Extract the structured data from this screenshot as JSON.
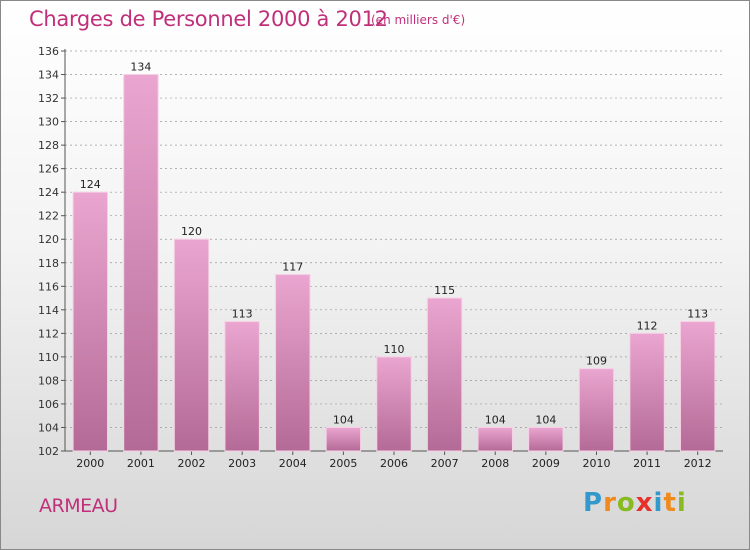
{
  "title": "Charges de Personnel 2000 à 2012",
  "unit_note": "(en milliers d'€)",
  "town": "ARMEAU",
  "logo": {
    "letters": [
      "P",
      "r",
      "o",
      "x",
      "i",
      "t",
      "i"
    ],
    "colors": [
      "#3399cc",
      "#f08a1c",
      "#88bb22",
      "#e8302a",
      "#3399cc",
      "#f08a1c",
      "#88bb22"
    ]
  },
  "colors": {
    "accent": "#c0307a",
    "bar_top": "#eaa6d0",
    "bar_bottom": "#b46a96"
  },
  "chart_data": {
    "type": "bar",
    "title": "Charges de Personnel 2000 à 2012",
    "categories": [
      "2000",
      "2001",
      "2002",
      "2003",
      "2004",
      "2005",
      "2006",
      "2007",
      "2008",
      "2009",
      "2010",
      "2011",
      "2012"
    ],
    "values": [
      124,
      134,
      120,
      113,
      117,
      104,
      110,
      115,
      104,
      104,
      109,
      112,
      113
    ],
    "ylim": [
      102,
      136
    ],
    "yticks": [
      102,
      104,
      106,
      108,
      110,
      112,
      114,
      116,
      118,
      120,
      122,
      124,
      126,
      128,
      130,
      132,
      134,
      136
    ],
    "grid": true,
    "xlabel": "",
    "ylabel": ""
  }
}
